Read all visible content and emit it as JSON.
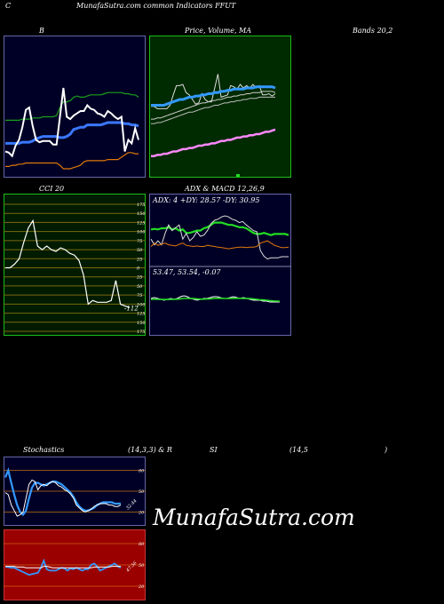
{
  "header": {
    "left": "C",
    "title": "MunafaSutra.com common Indicators FFUT"
  },
  "labels": {
    "bollinger": "B",
    "price": "Price, Volume, MA",
    "bands": "Bands 20,2",
    "cci": "CCI 20",
    "adx_macd": "ADX  & MACD 12,26,9",
    "stoch_a": "Stochastics",
    "stoch_b": "(14,3,3) & R",
    "rsi_a": "SI",
    "rsi_b": "(14,5",
    "rsi_c": ")"
  },
  "watermark": "MunafaSutra.com",
  "colors": {
    "price_bg": "#002a00",
    "price_border": "#1bbd1b",
    "cci_bg": "#001b00",
    "cci_grid": "#7a6a10",
    "rsi_bg": "#9a0000",
    "navy": "#000026",
    "white": "#ffffff",
    "blue": "#3399ff",
    "green": "#22dd22",
    "orange": "#e0780a",
    "magenta": "#ff88ff"
  },
  "chart_data": [
    {
      "type": "line",
      "name": "bollinger",
      "x": [
        1,
        2,
        3,
        4,
        5,
        6,
        7,
        8,
        9,
        10,
        11,
        12,
        13,
        14,
        15,
        16,
        17,
        18,
        19,
        20,
        21,
        22,
        23,
        24,
        25,
        26,
        27,
        28,
        29,
        30,
        31,
        32,
        33,
        34,
        35,
        36,
        37,
        38,
        39,
        40
      ],
      "ylim": [
        0,
        100
      ],
      "series": [
        {
          "key": "upper",
          "color": "#1aa01a",
          "values": [
            42,
            42,
            42,
            42,
            42,
            43,
            43,
            43,
            44,
            44,
            44,
            45,
            45,
            45,
            45,
            46,
            53,
            58,
            58,
            59,
            62,
            63,
            62,
            62,
            63,
            64,
            64,
            64,
            64,
            65,
            66,
            66,
            66,
            66,
            66,
            65,
            65,
            64,
            64,
            62
          ]
        },
        {
          "key": "mid",
          "color": "#3a78ff",
          "values": [
            22,
            22,
            22,
            22,
            22,
            23,
            23,
            23,
            24,
            26,
            27,
            28,
            28,
            28,
            28,
            28,
            27,
            27,
            28,
            30,
            34,
            35,
            36,
            36,
            38,
            38,
            38,
            38,
            38,
            39,
            40,
            40,
            40,
            40,
            40,
            39,
            39,
            38,
            38,
            37
          ]
        },
        {
          "key": "lower",
          "color": "#e0780a",
          "values": [
            2,
            2,
            3,
            3,
            4,
            4,
            5,
            5,
            5,
            5,
            5,
            5,
            5,
            5,
            5,
            5,
            3,
            0,
            0,
            0,
            1,
            2,
            3,
            6,
            7,
            7,
            7,
            7,
            7,
            7,
            8,
            8,
            8,
            8,
            10,
            12,
            14,
            14,
            13,
            13
          ]
        },
        {
          "key": "price",
          "color": "#ffffff",
          "values": [
            15,
            14,
            11,
            20,
            25,
            36,
            51,
            53,
            37,
            25,
            23,
            24,
            24,
            24,
            21,
            21,
            45,
            70,
            45,
            43,
            46,
            48,
            50,
            50,
            55,
            52,
            51,
            48,
            47,
            45,
            50,
            48,
            45,
            43,
            45,
            15,
            25,
            22,
            35,
            25
          ]
        }
      ]
    },
    {
      "type": "line",
      "name": "price_volume_ma",
      "x": [
        1,
        2,
        3,
        4,
        5,
        6,
        7,
        8,
        9,
        10,
        11,
        12,
        13,
        14,
        15,
        16,
        17,
        18,
        19,
        20,
        21,
        22,
        23,
        24,
        25,
        26,
        27,
        28,
        29,
        30,
        31,
        32,
        33,
        34,
        35,
        36,
        37,
        38,
        39,
        40
      ],
      "ylim": [
        0,
        100
      ],
      "series": [
        {
          "key": "price",
          "color": "#dddddd",
          "values": [
            54,
            54,
            52,
            52,
            52,
            52,
            55,
            64,
            72,
            72,
            73,
            66,
            64,
            60,
            56,
            57,
            65,
            60,
            58,
            58,
            70,
            82,
            62,
            63,
            64,
            72,
            71,
            69,
            73,
            70,
            72,
            70,
            73,
            70,
            72,
            64,
            64,
            65,
            63,
            65
          ]
        },
        {
          "key": "ma_blue",
          "color": "#3399ff",
          "values": [
            55,
            55,
            55,
            55,
            55,
            56,
            57,
            58,
            59,
            60,
            60,
            61,
            62,
            62,
            63,
            63,
            64,
            64,
            65,
            65,
            66,
            66,
            67,
            67,
            68,
            68,
            69,
            69,
            69,
            69,
            70,
            70,
            70,
            71,
            71,
            71,
            71,
            71,
            71,
            70
          ]
        },
        {
          "key": "ma_grey1",
          "color": "#cccccc",
          "values": [
            43,
            43,
            44,
            44,
            45,
            46,
            47,
            48,
            49,
            50,
            51,
            52,
            53,
            54,
            55,
            56,
            57,
            57,
            58,
            59,
            59,
            60,
            60,
            61,
            62,
            62,
            63,
            63,
            64,
            64,
            65,
            65,
            66,
            66,
            66,
            67,
            67,
            67,
            67,
            66
          ]
        },
        {
          "key": "ma_grey2",
          "color": "#bbbbbb",
          "values": [
            39,
            39,
            40,
            40,
            41,
            42,
            43,
            44,
            45,
            46,
            47,
            48,
            49,
            49,
            50,
            51,
            52,
            53,
            53,
            54,
            55,
            55,
            56,
            57,
            57,
            58,
            58,
            59,
            59,
            60,
            60,
            61,
            61,
            61,
            62,
            62,
            62,
            62,
            62,
            62
          ]
        },
        {
          "key": "ma_magenta",
          "color": "#ff88ff",
          "values": [
            11,
            11,
            12,
            12,
            13,
            13,
            14,
            15,
            15,
            16,
            17,
            17,
            18,
            18,
            19,
            20,
            20,
            21,
            21,
            22,
            22,
            23,
            24,
            24,
            25,
            25,
            26,
            27,
            27,
            28,
            28,
            29,
            29,
            30,
            30,
            31,
            32,
            32,
            33,
            34
          ]
        }
      ]
    },
    {
      "type": "line",
      "name": "cci",
      "ylim": [
        -175,
        175
      ],
      "ticks": [
        "175",
        "150",
        "125",
        "100",
        "75",
        "50",
        "25",
        "0",
        "25",
        "50",
        "75",
        "100",
        "125",
        "150",
        "175"
      ],
      "current_label": "-112",
      "x": [
        1,
        2,
        3,
        4,
        5,
        6,
        7,
        8,
        9,
        10,
        11,
        12,
        13,
        14,
        15,
        16,
        17,
        18,
        19,
        20,
        21,
        22,
        23,
        24,
        25,
        26,
        27,
        28
      ],
      "values": [
        0,
        0,
        10,
        25,
        70,
        110,
        130,
        60,
        50,
        60,
        50,
        45,
        55,
        50,
        40,
        35,
        20,
        -20,
        -100,
        -90,
        -95,
        -95,
        -95,
        -90,
        -35,
        -100,
        -105,
        -110
      ]
    },
    {
      "type": "line",
      "name": "adx",
      "readout": "ADX: 4  +DY: 28.57 -DY: 30.95",
      "ylim": [
        0,
        100
      ],
      "x": [
        1,
        2,
        3,
        4,
        5,
        6,
        7,
        8,
        9,
        10,
        11,
        12,
        13,
        14,
        15,
        16,
        17,
        18,
        19,
        20,
        21,
        22,
        23,
        24,
        25,
        26,
        27,
        28,
        29,
        30,
        31,
        32,
        33,
        34,
        35,
        36,
        37,
        38,
        39,
        40
      ],
      "series": [
        {
          "key": "adx",
          "color": "#22dd22",
          "values": [
            62,
            63,
            62,
            64,
            64,
            66,
            62,
            64,
            60,
            62,
            56,
            56,
            58,
            60,
            60,
            64,
            66,
            70,
            74,
            74,
            74,
            72,
            70,
            70,
            68,
            66,
            66,
            64,
            60,
            56,
            54,
            54,
            56,
            54,
            52,
            54,
            54,
            54,
            54,
            52
          ]
        },
        {
          "key": "plus_dy",
          "color": "#dddddd",
          "values": [
            45,
            35,
            42,
            35,
            55,
            70,
            60,
            65,
            70,
            45,
            55,
            42,
            48,
            58,
            50,
            52,
            60,
            72,
            78,
            80,
            84,
            86,
            84,
            80,
            78,
            74,
            76,
            70,
            65,
            60,
            58,
            25,
            15,
            10,
            12,
            12,
            12,
            14,
            14,
            14
          ]
        },
        {
          "key": "minus_dy",
          "color": "#e0780a",
          "values": [
            32,
            38,
            34,
            36,
            38,
            35,
            34,
            33,
            36,
            38,
            34,
            33,
            32,
            33,
            32,
            32,
            34,
            33,
            32,
            31,
            30,
            29,
            28,
            29,
            30,
            31,
            31,
            30,
            31,
            31,
            32,
            38,
            40,
            42,
            38,
            34,
            32,
            30,
            30,
            31
          ]
        }
      ]
    },
    {
      "type": "line",
      "name": "macd",
      "readout": "53.47,  53.54,  -0.07",
      "ylim": [
        -1,
        1
      ],
      "x": [
        1,
        2,
        3,
        4,
        5,
        6,
        7,
        8,
        9,
        10,
        11,
        12,
        13,
        14,
        15,
        16,
        17,
        18,
        19,
        20,
        21,
        22,
        23,
        24,
        25,
        26,
        27,
        28,
        29,
        30,
        31,
        32,
        33,
        34,
        35,
        36,
        37,
        38,
        39,
        40
      ],
      "series": [
        {
          "key": "macd",
          "color": "#ffffff",
          "values": [
            0.1,
            0.15,
            0.1,
            0.05,
            0.0,
            0.05,
            0.1,
            0.05,
            0.1,
            0.2,
            0.25,
            0.2,
            0.1,
            0.05,
            0.0,
            0.05,
            0.1,
            0.1,
            0.15,
            0.2,
            0.2,
            0.15,
            0.1,
            0.1,
            0.15,
            0.2,
            0.15,
            0.1,
            0.15,
            0.1,
            0.05,
            0.0,
            0.0,
            0.0,
            -0.05,
            -0.05,
            -0.1,
            -0.1,
            -0.1,
            -0.1
          ]
        },
        {
          "key": "signal",
          "color": "#22dd22",
          "values": [
            0.05,
            0.05,
            0.05,
            0.05,
            0.04,
            0.04,
            0.05,
            0.05,
            0.06,
            0.08,
            0.1,
            0.1,
            0.1,
            0.09,
            0.07,
            0.06,
            0.06,
            0.07,
            0.08,
            0.1,
            0.11,
            0.11,
            0.1,
            0.1,
            0.1,
            0.11,
            0.11,
            0.11,
            0.1,
            0.1,
            0.09,
            0.07,
            0.05,
            0.03,
            0.02,
            0.0,
            -0.02,
            -0.04,
            -0.05,
            -0.06
          ]
        }
      ]
    },
    {
      "type": "line",
      "name": "stochastics",
      "ylim": [
        0,
        100
      ],
      "ticks": [
        "80",
        "50",
        "20"
      ],
      "current_label": "32.44",
      "x": [
        1,
        2,
        3,
        4,
        5,
        6,
        7,
        8,
        9,
        10,
        11,
        12,
        13,
        14,
        15,
        16,
        17,
        18,
        19,
        20,
        21,
        22,
        23,
        24,
        25,
        26,
        27,
        28,
        29,
        30,
        31,
        32,
        33,
        34,
        35,
        36,
        37,
        38,
        39,
        40
      ],
      "series": [
        {
          "key": "slow",
          "color": "#3399ff",
          "values": [
            70,
            80,
            62,
            45,
            30,
            20,
            16,
            22,
            40,
            55,
            62,
            62,
            60,
            58,
            60,
            62,
            64,
            64,
            62,
            60,
            56,
            52,
            48,
            42,
            34,
            28,
            24,
            22,
            22,
            24,
            26,
            30,
            32,
            34,
            34,
            34,
            34,
            32,
            32,
            32
          ]
        },
        {
          "key": "fast",
          "color": "#ffffff",
          "values": [
            48,
            45,
            30,
            22,
            14,
            16,
            20,
            40,
            60,
            66,
            64,
            52,
            58,
            60,
            58,
            62,
            64,
            62,
            58,
            56,
            52,
            50,
            46,
            40,
            30,
            26,
            22,
            20,
            22,
            24,
            28,
            30,
            32,
            32,
            32,
            30,
            30,
            28,
            28,
            30
          ]
        }
      ]
    },
    {
      "type": "line",
      "name": "rsi",
      "ylim": [
        0,
        100
      ],
      "ticks": [
        "80",
        "50",
        "20"
      ],
      "current_label": "47.56",
      "x": [
        1,
        2,
        3,
        4,
        5,
        6,
        7,
        8,
        9,
        10,
        11,
        12,
        13,
        14,
        15,
        16,
        17,
        18,
        19,
        20,
        21,
        22,
        23,
        24,
        25,
        26,
        27,
        28,
        29,
        30,
        31,
        32,
        33,
        34,
        35,
        36,
        37,
        38,
        39,
        40
      ],
      "series": [
        {
          "key": "rsi",
          "color": "#3399ff",
          "values": [
            47,
            47,
            46,
            46,
            44,
            42,
            40,
            38,
            36,
            37,
            38,
            39,
            46,
            56,
            44,
            42,
            42,
            42,
            44,
            46,
            45,
            42,
            45,
            44,
            46,
            44,
            42,
            44,
            44,
            50,
            52,
            48,
            42,
            44,
            46,
            48,
            50,
            52,
            48,
            46
          ]
        },
        {
          "key": "mrsi",
          "color": "#ffffff",
          "values": [
            48,
            48,
            48,
            48,
            47,
            47,
            47,
            46,
            46,
            46,
            46,
            46,
            46,
            48,
            48,
            47,
            46,
            46,
            46,
            46,
            46,
            46,
            46,
            46,
            46,
            46,
            46,
            46,
            46,
            46,
            47,
            47,
            47,
            47,
            47,
            47,
            48,
            48,
            48,
            48
          ]
        }
      ]
    }
  ]
}
